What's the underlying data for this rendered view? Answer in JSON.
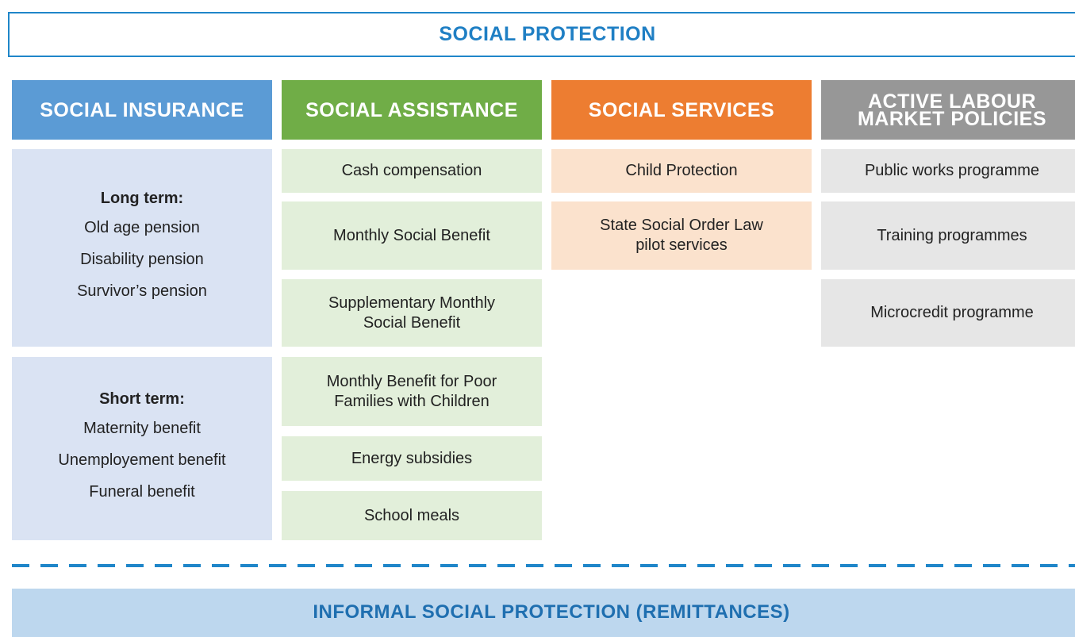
{
  "title": "SOCIAL PROTECTION",
  "columns": [
    {
      "header": [
        "SOCIAL INSURANCE"
      ],
      "items": [
        {
          "heading": "Long term:",
          "lines": [
            "Old age pension",
            "Disability pension",
            "Survivor’s pension"
          ]
        },
        {
          "heading": "Short term:",
          "lines": [
            "Maternity benefit",
            "Unemployement benefit",
            "Funeral benefit"
          ]
        }
      ]
    },
    {
      "header": [
        "SOCIAL ASSISTANCE"
      ],
      "items": [
        {
          "lines": [
            "Cash compensation"
          ]
        },
        {
          "lines": [
            "Monthly Social Benefit"
          ]
        },
        {
          "lines": [
            "Supplementary Monthly",
            "Social Benefit"
          ]
        },
        {
          "lines": [
            "Monthly Benefit for Poor",
            "Families with Children"
          ]
        },
        {
          "lines": [
            "Energy subsidies"
          ]
        },
        {
          "lines": [
            "School meals"
          ]
        }
      ]
    },
    {
      "header": [
        "SOCIAL SERVICES"
      ],
      "items": [
        {
          "lines": [
            "Child Protection"
          ]
        },
        {
          "lines": [
            "State Social Order Law",
            "pilot services"
          ]
        }
      ]
    },
    {
      "header": [
        "ACTIVE LABOUR",
        "MARKET POLICIES"
      ],
      "items": [
        {
          "lines": [
            "Public works programme"
          ]
        },
        {
          "lines": [
            "Training programmes"
          ]
        },
        {
          "lines": [
            "Microcredit programme"
          ]
        }
      ]
    }
  ],
  "footer": "INFORMAL SOCIAL PROTECTION (REMITTANCES)"
}
